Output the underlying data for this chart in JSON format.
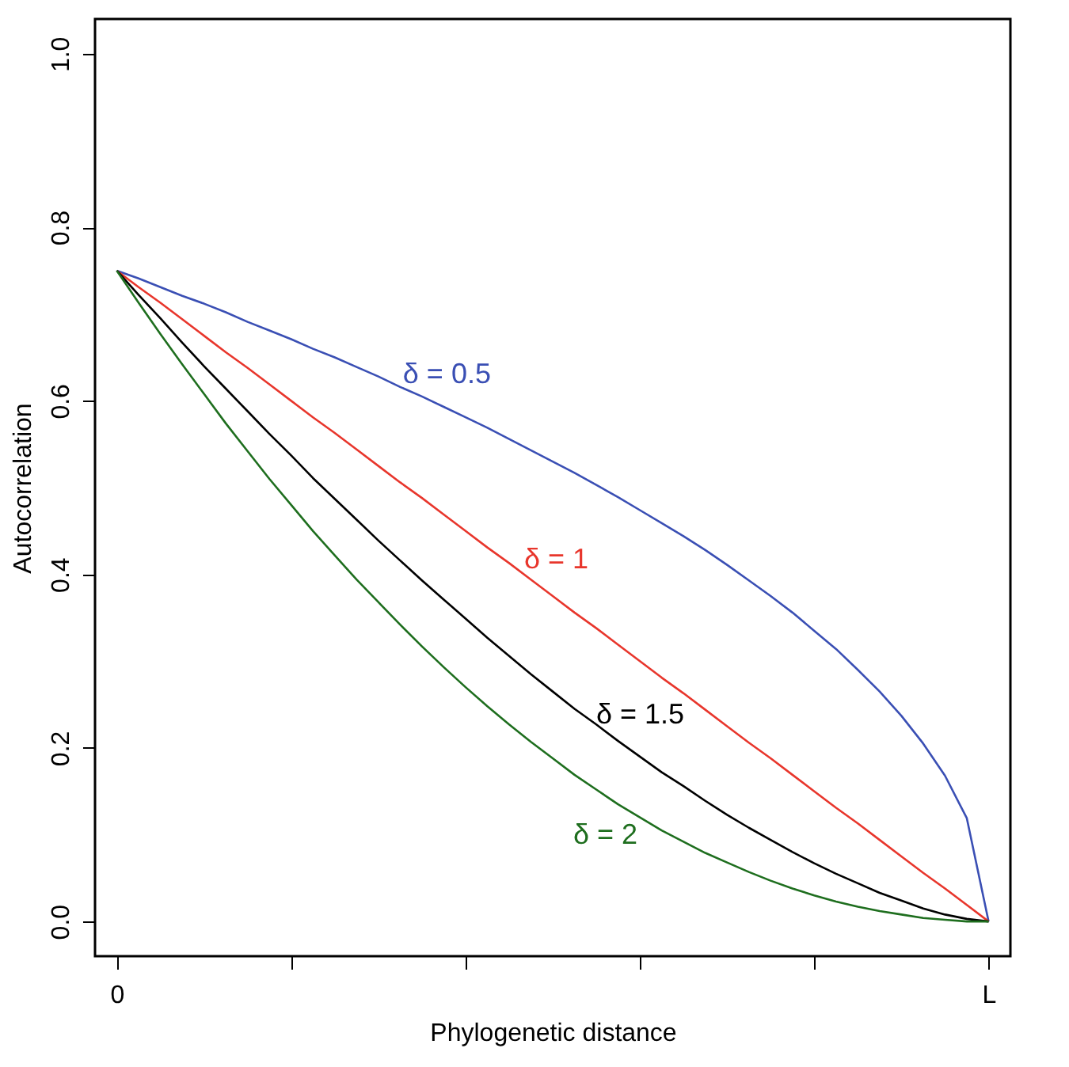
{
  "chart_data": {
    "type": "line",
    "xlabel": "Phylogenetic distance",
    "ylabel": "Autocorrelation",
    "categories": [
      "0",
      null,
      null,
      null,
      null,
      null,
      null,
      null,
      null,
      null,
      null,
      null,
      null,
      null,
      null,
      null,
      null,
      null,
      null,
      null,
      null,
      null,
      null,
      null,
      null,
      null,
      null,
      null,
      null,
      null,
      null,
      null,
      null,
      null,
      null,
      null,
      null,
      null,
      null,
      null,
      "L"
    ],
    "ylim": [
      -0.04,
      1.04
    ],
    "yticks": [
      {
        "value": 0,
        "label": "0.0"
      },
      {
        "value": 0.2,
        "label": "0.2"
      },
      {
        "value": 0.4,
        "label": "0.4"
      },
      {
        "value": 0.6,
        "label": "0.6"
      },
      {
        "value": 0.8,
        "label": "0.8"
      },
      {
        "value": 1,
        "label": "1.0"
      }
    ],
    "grid": false,
    "legend": false,
    "marker": "none",
    "line_style": "solid",
    "series": [
      {
        "name": "δ = 0.5",
        "color": "#3a4fb4",
        "values": [
          0.75,
          0.741,
          0.731,
          0.721,
          0.712,
          0.702,
          0.691,
          0.681,
          0.671,
          0.66,
          0.65,
          0.639,
          0.628,
          0.616,
          0.605,
          0.593,
          0.581,
          0.569,
          0.556,
          0.543,
          0.53,
          0.517,
          0.503,
          0.489,
          0.474,
          0.459,
          0.444,
          0.428,
          0.411,
          0.393,
          0.375,
          0.356,
          0.335,
          0.314,
          0.29,
          0.265,
          0.237,
          0.205,
          0.168,
          0.119,
          0
        ]
      },
      {
        "name": "δ = 1",
        "color": "#e8362c",
        "values": [
          0.75,
          0.731,
          0.713,
          0.694,
          0.675,
          0.656,
          0.638,
          0.619,
          0.6,
          0.581,
          0.563,
          0.544,
          0.525,
          0.506,
          0.488,
          0.469,
          0.45,
          0.431,
          0.413,
          0.394,
          0.375,
          0.356,
          0.338,
          0.319,
          0.3,
          0.281,
          0.263,
          0.244,
          0.225,
          0.206,
          0.188,
          0.169,
          0.15,
          0.131,
          0.113,
          0.094,
          0.075,
          0.056,
          0.038,
          0.019,
          0
        ]
      },
      {
        "name": "δ = 1.5",
        "color": "#000000",
        "values": [
          0.75,
          0.722,
          0.695,
          0.667,
          0.64,
          0.614,
          0.588,
          0.562,
          0.537,
          0.511,
          0.487,
          0.463,
          0.439,
          0.416,
          0.393,
          0.371,
          0.349,
          0.327,
          0.306,
          0.285,
          0.265,
          0.245,
          0.227,
          0.208,
          0.19,
          0.172,
          0.156,
          0.139,
          0.123,
          0.108,
          0.094,
          0.08,
          0.067,
          0.055,
          0.044,
          0.033,
          0.024,
          0.015,
          0.008,
          0.003,
          0
        ]
      },
      {
        "name": "δ = 2",
        "color": "#1e6e1e",
        "values": [
          0.75,
          0.713,
          0.677,
          0.642,
          0.608,
          0.574,
          0.542,
          0.51,
          0.48,
          0.45,
          0.422,
          0.394,
          0.368,
          0.342,
          0.317,
          0.293,
          0.27,
          0.248,
          0.227,
          0.207,
          0.188,
          0.169,
          0.152,
          0.135,
          0.12,
          0.105,
          0.092,
          0.079,
          0.068,
          0.057,
          0.047,
          0.038,
          0.03,
          0.023,
          0.017,
          0.012,
          0.008,
          0.004,
          0.002,
          0,
          0
        ]
      }
    ]
  }
}
